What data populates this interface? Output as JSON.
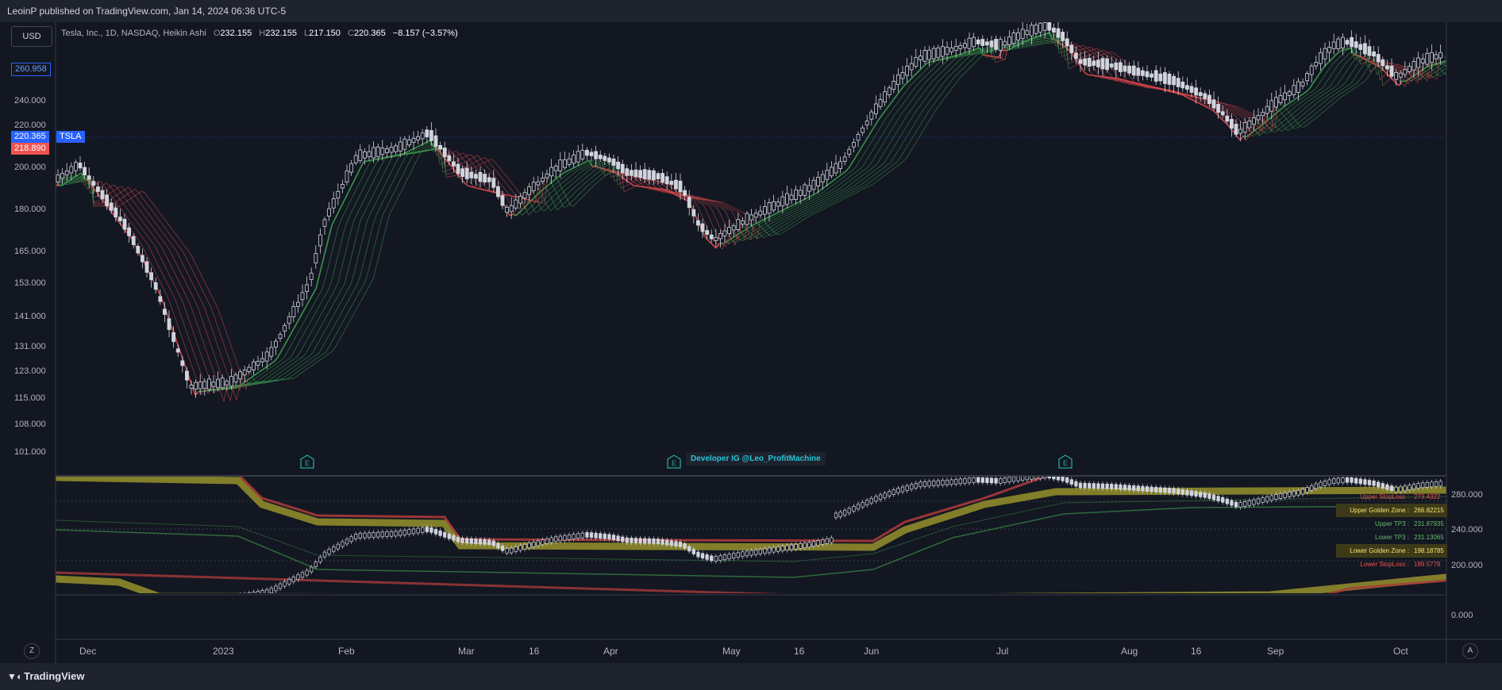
{
  "header": {
    "publisher": "LeoinP published on TradingView.com, Jan 14, 2024 06:36 UTC-5"
  },
  "toolbar": {
    "currency": "USD"
  },
  "legend": {
    "instrument": "Tesla, Inc., 1D, NASDAQ, Heikin Ashi",
    "o_label": "O",
    "o": "232.155",
    "h_label": "H",
    "h": "232.155",
    "l_label": "L",
    "l": "217.150",
    "c_label": "C",
    "c": "220.365",
    "change": "−8.157 (−3.57%)"
  },
  "price_labels": {
    "high_marker": "260.958",
    "last": "220.365",
    "symbol": "TSLA",
    "other": "218.890"
  },
  "main_axis": [
    "240.000",
    "220.000",
    "200.000",
    "180.000",
    "165.000",
    "153.000",
    "141.000",
    "131.000",
    "123.000",
    "115.000",
    "108.000",
    "101.000"
  ],
  "lower_axis": [
    "280.000",
    "240.000",
    "200.000",
    "0.000"
  ],
  "time_axis": [
    "Dec",
    "2023",
    "Feb",
    "Mar",
    "16",
    "Apr",
    "May",
    "16",
    "Jun",
    "Jul",
    "Aug",
    "16",
    "Sep",
    "Oct"
  ],
  "annotation": {
    "text": "Developer IG @Leo_ProfitMachine"
  },
  "event_icon": "E",
  "levels_table": [
    {
      "label": "Upper StopLoss :",
      "value": "273.4322",
      "color": "#ef5350"
    },
    {
      "label": "Upper Golden Zone :",
      "value": "266.82215",
      "color": "#f5e66a"
    },
    {
      "label": "Upper TP3 :",
      "value": "231.87935",
      "color": "#66bb6a"
    },
    {
      "label": "Lower TP3 :",
      "value": "231.13065",
      "color": "#66bb6a"
    },
    {
      "label": "Lower Golden Zone :",
      "value": "198.18785",
      "color": "#f5e66a"
    },
    {
      "label": "Lower StopLoss :",
      "value": "189.5778",
      "color": "#ef5350"
    }
  ],
  "bottom": {
    "brand": "TradingView",
    "left_btn": "Z",
    "right_btn": "A"
  },
  "colors": {
    "bull": "#4caf50",
    "bear": "#ef5350",
    "gold": "#8f8a2a",
    "accent": "#2962ff"
  }
}
